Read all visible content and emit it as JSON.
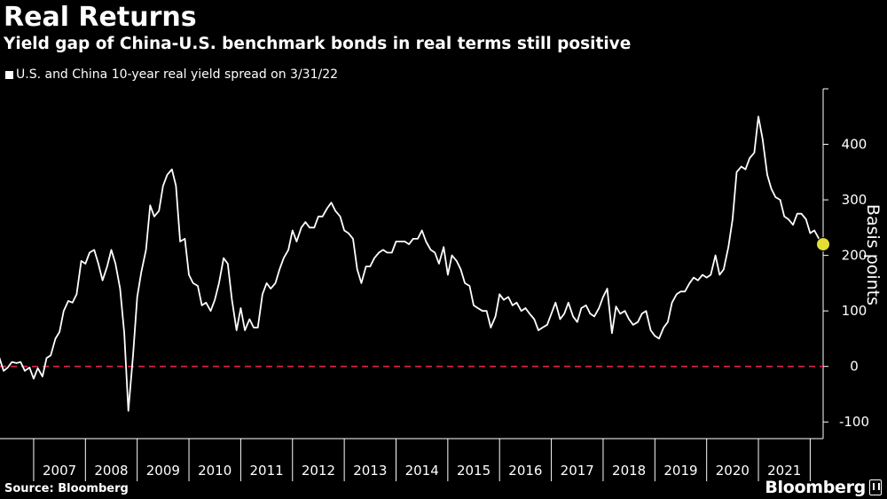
{
  "header": {
    "title": "Real Returns",
    "subtitle": "Yield gap of China-U.S. benchmark bonds in real terms still positive"
  },
  "footer": {
    "source": "Source: Bloomberg",
    "brand": "Bloomberg"
  },
  "colors": {
    "background": "#000000",
    "line": "#ffffff",
    "zero_line": "#e0234a",
    "highlight_marker": "#e4de33"
  },
  "chart_data": {
    "type": "line",
    "title": "Real Returns",
    "subtitle": "Yield gap of China-U.S. benchmark bonds in real terms still positive",
    "ylabel": "Basis points",
    "xlabel": "",
    "ylim": [
      -130,
      500
    ],
    "xlim": [
      2006.35,
      2022.25
    ],
    "y_ticks": [
      -100,
      0,
      100,
      200,
      300,
      400
    ],
    "x_ticks": [
      "2007",
      "2008",
      "2009",
      "2010",
      "2011",
      "2012",
      "2013",
      "2014",
      "2015",
      "2016",
      "2017",
      "2018",
      "2019",
      "2020",
      "2021"
    ],
    "grid": false,
    "legend": "top-left",
    "reference_line": {
      "y": 0,
      "style": "dashed"
    },
    "series": [
      {
        "name": "U.S. and China 10-year real yield spread on 3/31/22",
        "x": [
          2006.33,
          2006.42,
          2006.5,
          2006.58,
          2006.67,
          2006.75,
          2006.83,
          2006.92,
          2007.0,
          2007.08,
          2007.17,
          2007.25,
          2007.33,
          2007.42,
          2007.5,
          2007.58,
          2007.67,
          2007.75,
          2007.83,
          2007.92,
          2008.0,
          2008.08,
          2008.17,
          2008.25,
          2008.33,
          2008.42,
          2008.5,
          2008.58,
          2008.67,
          2008.75,
          2008.83,
          2008.92,
          2009.0,
          2009.08,
          2009.17,
          2009.25,
          2009.33,
          2009.42,
          2009.5,
          2009.58,
          2009.67,
          2009.75,
          2009.83,
          2009.92,
          2010.0,
          2010.08,
          2010.17,
          2010.25,
          2010.33,
          2010.42,
          2010.5,
          2010.58,
          2010.67,
          2010.75,
          2010.83,
          2010.92,
          2011.0,
          2011.08,
          2011.17,
          2011.25,
          2011.33,
          2011.42,
          2011.5,
          2011.58,
          2011.67,
          2011.75,
          2011.83,
          2011.92,
          2012.0,
          2012.08,
          2012.17,
          2012.25,
          2012.33,
          2012.42,
          2012.5,
          2012.58,
          2012.67,
          2012.75,
          2012.83,
          2012.92,
          2013.0,
          2013.08,
          2013.17,
          2013.25,
          2013.33,
          2013.42,
          2013.5,
          2013.58,
          2013.67,
          2013.75,
          2013.83,
          2013.92,
          2014.0,
          2014.08,
          2014.17,
          2014.25,
          2014.33,
          2014.42,
          2014.5,
          2014.58,
          2014.67,
          2014.75,
          2014.83,
          2014.92,
          2015.0,
          2015.08,
          2015.17,
          2015.25,
          2015.33,
          2015.42,
          2015.5,
          2015.58,
          2015.67,
          2015.75,
          2015.83,
          2015.92,
          2016.0,
          2016.08,
          2016.17,
          2016.25,
          2016.33,
          2016.42,
          2016.5,
          2016.58,
          2016.67,
          2016.75,
          2016.83,
          2016.92,
          2017.0,
          2017.08,
          2017.17,
          2017.25,
          2017.33,
          2017.42,
          2017.5,
          2017.58,
          2017.67,
          2017.75,
          2017.83,
          2017.92,
          2018.0,
          2018.08,
          2018.17,
          2018.25,
          2018.33,
          2018.42,
          2018.5,
          2018.58,
          2018.67,
          2018.75,
          2018.83,
          2018.92,
          2019.0,
          2019.08,
          2019.17,
          2019.25,
          2019.33,
          2019.42,
          2019.5,
          2019.58,
          2019.67,
          2019.75,
          2019.83,
          2019.92,
          2020.0,
          2020.08,
          2020.17,
          2020.25,
          2020.33,
          2020.42,
          2020.5,
          2020.58,
          2020.67,
          2020.75,
          2020.83,
          2020.92,
          2021.0,
          2021.08,
          2021.17,
          2021.25,
          2021.33,
          2021.42,
          2021.5,
          2021.58,
          2021.67,
          2021.75,
          2021.83,
          2021.92,
          2022.0,
          2022.08,
          2022.17,
          2022.25
        ],
        "values": [
          18,
          -8,
          -2,
          8,
          6,
          8,
          -8,
          -2,
          -22,
          -3,
          -18,
          15,
          20,
          50,
          62,
          100,
          118,
          115,
          130,
          190,
          185,
          205,
          210,
          185,
          155,
          180,
          210,
          185,
          140,
          60,
          -80,
          20,
          125,
          170,
          210,
          290,
          270,
          280,
          325,
          345,
          355,
          325,
          225,
          230,
          165,
          150,
          145,
          110,
          115,
          100,
          120,
          150,
          195,
          185,
          120,
          65,
          105,
          65,
          85,
          70,
          70,
          130,
          150,
          140,
          150,
          175,
          195,
          210,
          245,
          225,
          250,
          260,
          250,
          250,
          270,
          270,
          285,
          295,
          280,
          270,
          245,
          240,
          230,
          175,
          150,
          180,
          180,
          195,
          205,
          210,
          205,
          205,
          225,
          225,
          225,
          220,
          230,
          230,
          245,
          225,
          210,
          205,
          185,
          215,
          165,
          200,
          190,
          175,
          150,
          145,
          110,
          105,
          100,
          100,
          70,
          90,
          130,
          120,
          125,
          110,
          115,
          100,
          105,
          95,
          85,
          65,
          70,
          75,
          95,
          115,
          85,
          95,
          115,
          90,
          80,
          105,
          110,
          95,
          90,
          105,
          125,
          140,
          60,
          108,
          95,
          100,
          85,
          75,
          80,
          95,
          100,
          65,
          55,
          50,
          70,
          80,
          115,
          130,
          135,
          135,
          150,
          160,
          155,
          165,
          160,
          165,
          200,
          165,
          175,
          215,
          265,
          350,
          360,
          355,
          375,
          385,
          450,
          410,
          345,
          320,
          305,
          300,
          270,
          265,
          255,
          275,
          275,
          265,
          240,
          245,
          230,
          220
        ],
        "highlight_last": true
      }
    ]
  }
}
